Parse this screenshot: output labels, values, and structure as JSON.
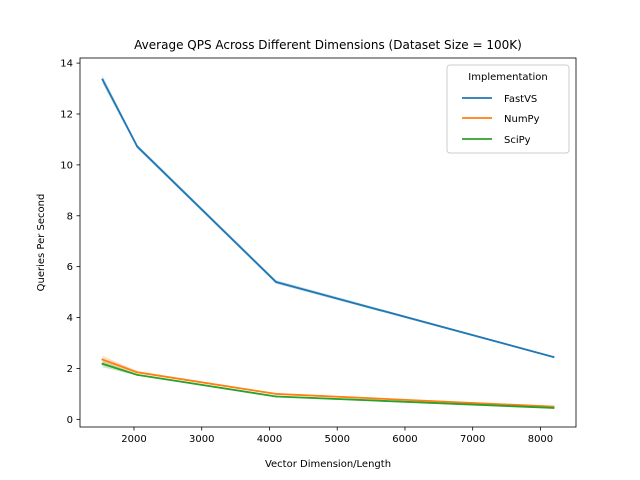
{
  "chart_data": {
    "type": "line",
    "title": "Average QPS Across Different Dimensions (Dataset Size = 100K)",
    "xlabel": "Vector Dimension/Length",
    "ylabel": "Queries Per Second",
    "x": [
      1536,
      2048,
      4096,
      8192
    ],
    "xlim": [
      1203,
      8525
    ],
    "ylim": [
      -0.3,
      14.2
    ],
    "xticks": [
      2000,
      3000,
      4000,
      5000,
      6000,
      7000,
      8000
    ],
    "yticks": [
      0,
      2,
      4,
      6,
      8,
      10,
      12,
      14
    ],
    "grid": false,
    "legend": {
      "title": "Implementation",
      "placement": "top-right"
    },
    "series": [
      {
        "name": "FastVS",
        "color": "#1f77b4",
        "values": [
          13.35,
          10.72,
          5.4,
          2.45
        ],
        "band_low": [
          13.2,
          10.65,
          5.33,
          2.42
        ],
        "band_high": [
          13.5,
          10.8,
          5.47,
          2.48
        ]
      },
      {
        "name": "NumPy",
        "color": "#ff7f0e",
        "values": [
          2.35,
          1.85,
          1.0,
          0.5
        ],
        "band_low": [
          2.2,
          1.8,
          0.97,
          0.47
        ],
        "band_high": [
          2.5,
          1.9,
          1.03,
          0.53
        ]
      },
      {
        "name": "SciPy",
        "color": "#2ca02c",
        "values": [
          2.18,
          1.75,
          0.9,
          0.45
        ],
        "band_low": [
          2.05,
          1.72,
          0.87,
          0.42
        ],
        "band_high": [
          2.3,
          1.78,
          0.93,
          0.48
        ]
      }
    ]
  }
}
